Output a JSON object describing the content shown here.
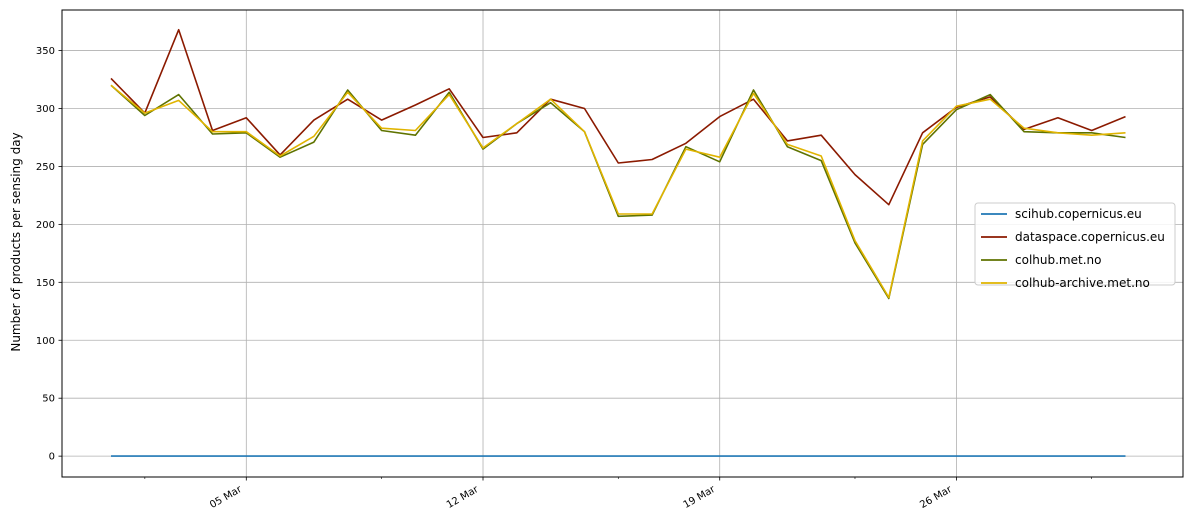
{
  "chart_data": {
    "type": "line",
    "title": "",
    "xlabel": "",
    "ylabel": "Number of products per sensing day",
    "ylim": [
      -18,
      385
    ],
    "xlim": [
      -1.45,
      31.7
    ],
    "x_origin_label": "2025-03-01",
    "x_tick_labels": [
      "05 Mar",
      "12 Mar",
      "19 Mar",
      "26 Mar"
    ],
    "x_tick_days": [
      4,
      11,
      18,
      25
    ],
    "x_minor_days": [
      1,
      8,
      15,
      22,
      29
    ],
    "y_ticks": [
      0,
      50,
      100,
      150,
      200,
      250,
      300,
      350
    ],
    "grid": true,
    "legend_position": "center-right",
    "series": [
      {
        "name": "scihub.copernicus.eu",
        "color": "#1f77b4",
        "values": [
          0,
          0,
          0,
          0,
          0,
          0,
          0,
          0,
          0,
          0,
          0,
          0,
          0,
          0,
          0,
          0,
          0,
          0,
          0,
          0,
          0,
          0,
          0,
          0,
          0,
          0,
          0,
          0,
          0,
          0,
          0
        ]
      },
      {
        "name": "dataspace.copernicus.eu",
        "color": "#8b1a00",
        "values": [
          326,
          296,
          368,
          281,
          292,
          260,
          290,
          308,
          290,
          303,
          317,
          275,
          279,
          308,
          300,
          253,
          256,
          270,
          293,
          308,
          272,
          277,
          243,
          217,
          279,
          301,
          310,
          282,
          292,
          281,
          293
        ]
      },
      {
        "name": "colhub.met.no",
        "color": "#5f7300",
        "values": [
          320,
          294,
          312,
          278,
          279,
          258,
          271,
          316,
          281,
          277,
          314,
          265,
          287,
          305,
          280,
          207,
          208,
          267,
          254,
          316,
          267,
          255,
          184,
          136,
          269,
          299,
          312,
          280,
          279,
          279,
          275
        ]
      },
      {
        "name": "colhub-archive.met.no",
        "color": "#e0b400",
        "values": [
          320,
          296,
          307,
          280,
          280,
          259,
          276,
          314,
          283,
          281,
          312,
          266,
          287,
          308,
          280,
          209,
          209,
          265,
          258,
          313,
          269,
          259,
          186,
          137,
          272,
          302,
          308,
          283,
          279,
          277,
          279
        ]
      }
    ]
  }
}
